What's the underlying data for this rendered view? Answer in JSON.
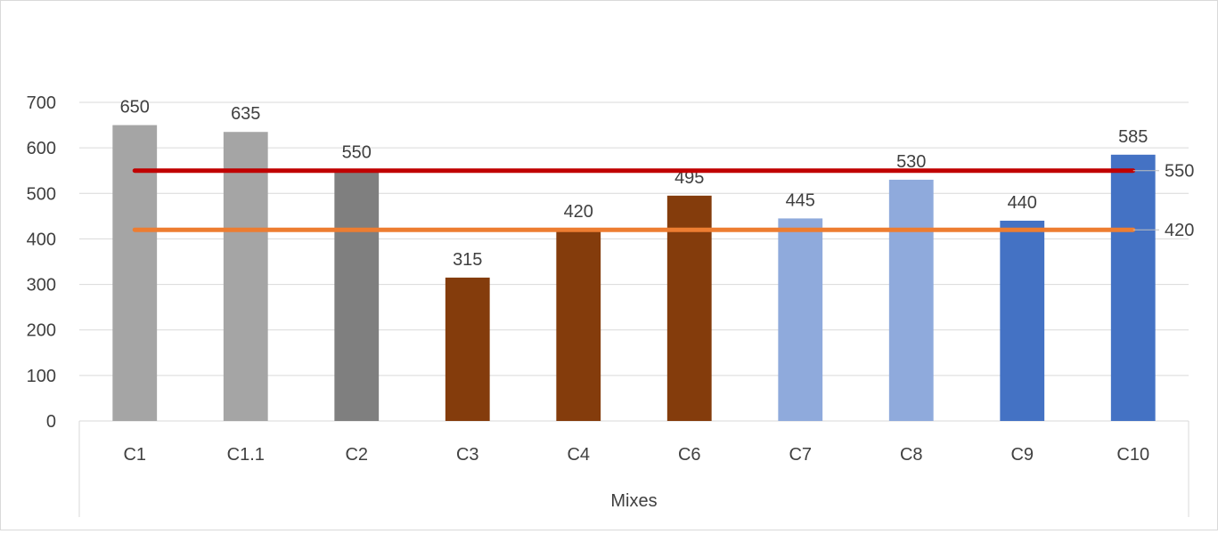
{
  "chart_data": {
    "type": "bar",
    "title": "",
    "xlabel": "Mixes",
    "ylabel": "",
    "ylim": [
      0,
      700
    ],
    "yticks": [
      0,
      100,
      200,
      300,
      400,
      500,
      600,
      700
    ],
    "grid": true,
    "categories": [
      "C1",
      "C1.1",
      "C2",
      "C3",
      "C4",
      "C6",
      "C7",
      "C8",
      "C9",
      "C10"
    ],
    "values": [
      650,
      635,
      550,
      315,
      420,
      495,
      445,
      530,
      440,
      585
    ],
    "bar_colors": [
      "#a5a5a5",
      "#a5a5a5",
      "#7f7f7f",
      "#843c0c",
      "#843c0c",
      "#843c0c",
      "#8faadc",
      "#8faadc",
      "#4472c4",
      "#4472c4"
    ],
    "reference_lines": [
      {
        "value": 550,
        "label": "550",
        "color": "#c00000"
      },
      {
        "value": 420,
        "label": "420",
        "color": "#ed7d31"
      }
    ],
    "legend": "none"
  }
}
